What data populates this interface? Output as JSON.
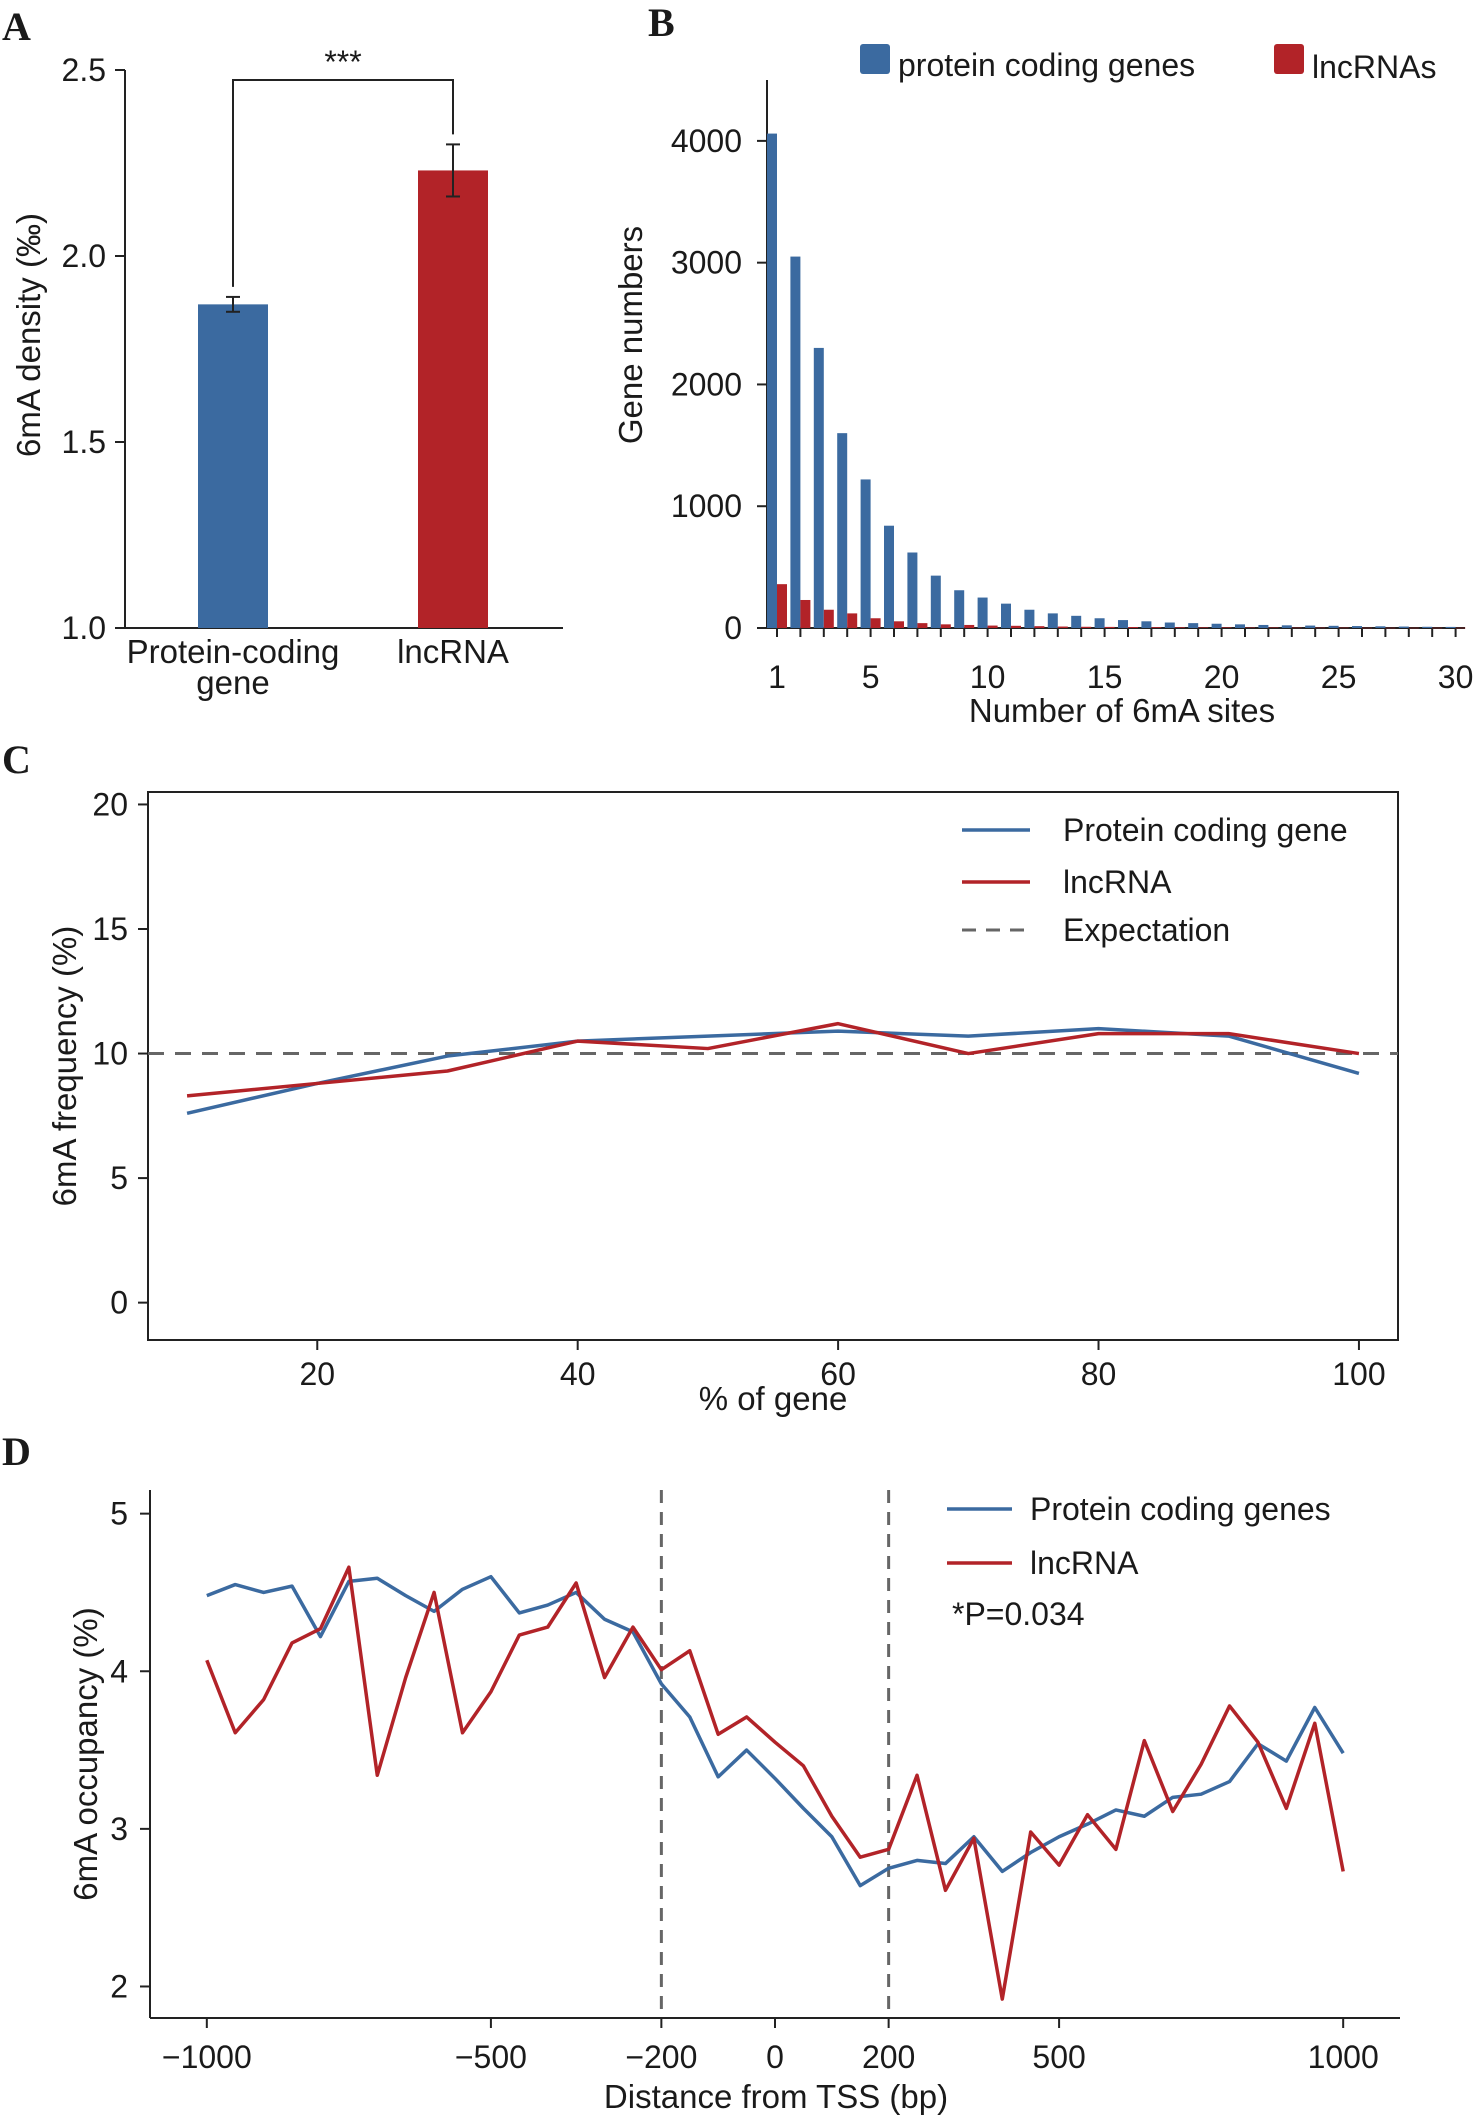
{
  "panels": {
    "A": "A",
    "B": "B",
    "C": "C",
    "D": "D"
  },
  "colors": {
    "protein": "#3b6aa0",
    "lnc": "#b22328",
    "expectation": "#666666"
  },
  "chart_data": [
    {
      "id": "A",
      "type": "bar",
      "ylabel": "6mA density (‰)",
      "ylim": [
        1.0,
        2.5
      ],
      "yticks": [
        "1.0",
        "1.5",
        "2.0",
        "2.5"
      ],
      "categories": [
        [
          "Protein-coding",
          "gene"
        ],
        [
          "lncRNA"
        ]
      ],
      "values": [
        1.87,
        2.23
      ],
      "errors": [
        0.02,
        0.07
      ],
      "significance": "***"
    },
    {
      "id": "B",
      "type": "bar",
      "xlabel": "Number of 6mA  sites",
      "ylabel": "Gene numbers",
      "ylim": [
        0,
        4500
      ],
      "yticks": [
        "0",
        "1000",
        "2000",
        "3000",
        "4000"
      ],
      "xticks": [
        "1",
        "5",
        "10",
        "15",
        "20",
        "25",
        "30"
      ],
      "x": [
        1,
        2,
        3,
        4,
        5,
        6,
        7,
        8,
        9,
        10,
        11,
        12,
        13,
        14,
        15,
        16,
        17,
        18,
        19,
        20,
        21,
        22,
        23,
        24,
        25,
        26,
        27,
        28,
        29,
        30
      ],
      "series": [
        {
          "name": "protein coding genes",
          "values": [
            4060,
            3050,
            2300,
            1600,
            1220,
            840,
            620,
            430,
            310,
            250,
            200,
            150,
            120,
            100,
            80,
            65,
            55,
            45,
            40,
            35,
            30,
            25,
            22,
            20,
            18,
            16,
            14,
            12,
            10,
            9
          ]
        },
        {
          "name": "lncRNAs",
          "values": [
            360,
            230,
            150,
            120,
            80,
            55,
            40,
            30,
            25,
            20,
            18,
            15,
            12,
            10,
            9,
            8,
            7,
            6,
            5,
            5,
            4,
            4,
            3,
            3,
            3,
            2,
            2,
            2,
            2,
            2
          ]
        }
      ]
    },
    {
      "id": "C",
      "type": "line",
      "xlabel": "% of gene",
      "ylabel": "6mA frequency (%)",
      "xlim": [
        7,
        103
      ],
      "ylim": [
        -1.5,
        20.5
      ],
      "xticks": [
        "20",
        "40",
        "60",
        "80",
        "100"
      ],
      "yticks": [
        "0",
        "5",
        "10",
        "15",
        "20"
      ],
      "x": [
        10,
        20,
        30,
        40,
        50,
        60,
        70,
        80,
        90,
        100
      ],
      "series": [
        {
          "name": "Protein coding gene",
          "values": [
            7.6,
            8.8,
            9.9,
            10.5,
            10.7,
            10.9,
            10.7,
            11.0,
            10.7,
            9.2
          ]
        },
        {
          "name": "lncRNA",
          "values": [
            8.3,
            8.8,
            9.3,
            10.5,
            10.2,
            11.2,
            10.0,
            10.8,
            10.8,
            10.0
          ]
        }
      ],
      "expectation": {
        "name": "Expectation",
        "value": 10
      }
    },
    {
      "id": "D",
      "type": "line",
      "xlabel": "Distance from TSS (bp)",
      "ylabel": "6mA occupancy (%)",
      "xlim": [
        -1100,
        1100
      ],
      "ylim": [
        1.8,
        5.15
      ],
      "xticks": [
        "−1000",
        "−500",
        "−200",
        "0",
        "200",
        "500",
        "1000"
      ],
      "yticks": [
        "2",
        "3",
        "4",
        "5"
      ],
      "vlines": [
        -200,
        200
      ],
      "annotation": "*P=0.034",
      "x": [
        -1000,
        -950,
        -900,
        -850,
        -800,
        -750,
        -700,
        -650,
        -600,
        -550,
        -500,
        -450,
        -400,
        -350,
        -300,
        -250,
        -200,
        -150,
        -100,
        -50,
        0,
        50,
        100,
        150,
        200,
        250,
        300,
        350,
        400,
        450,
        500,
        550,
        600,
        650,
        700,
        750,
        800,
        850,
        900,
        950,
        1000
      ],
      "series": [
        {
          "name": "Protein coding genes",
          "values": [
            4.48,
            4.55,
            4.5,
            4.54,
            4.22,
            4.57,
            4.59,
            4.48,
            4.38,
            4.52,
            4.6,
            4.37,
            4.42,
            4.5,
            4.33,
            4.25,
            3.92,
            3.71,
            3.33,
            3.5,
            3.32,
            3.13,
            2.95,
            2.64,
            2.75,
            2.8,
            2.78,
            2.95,
            2.73,
            2.85,
            2.95,
            3.03,
            3.12,
            3.08,
            3.2,
            3.22,
            3.3,
            3.54,
            3.43,
            3.77,
            3.48
          ]
        },
        {
          "name": "lncRNA",
          "values": [
            4.07,
            3.61,
            3.82,
            4.18,
            4.27,
            4.66,
            3.34,
            3.96,
            4.5,
            3.61,
            3.87,
            4.23,
            4.28,
            4.56,
            3.96,
            4.28,
            4.01,
            4.13,
            3.6,
            3.71,
            3.55,
            3.4,
            3.08,
            2.82,
            2.87,
            3.34,
            2.61,
            2.94,
            1.92,
            2.98,
            2.77,
            3.09,
            2.87,
            3.56,
            3.11,
            3.41,
            3.78,
            3.55,
            3.13,
            3.67,
            2.73
          ]
        }
      ]
    }
  ]
}
